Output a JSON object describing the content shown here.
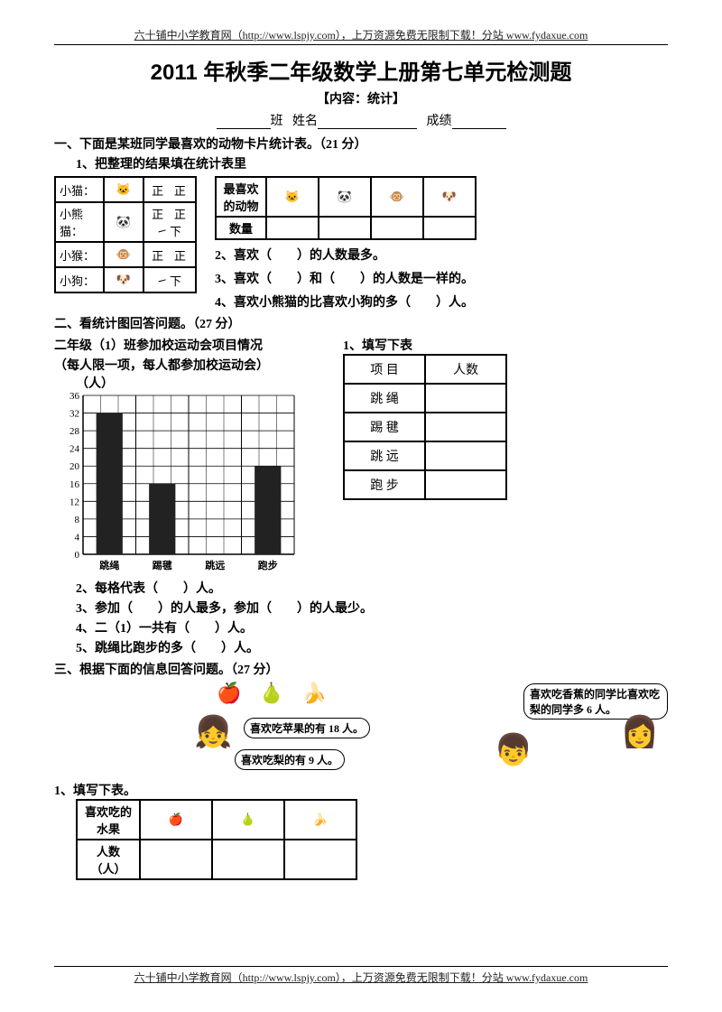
{
  "header_footer": "六十铺中小学教育网（http://www.lspjy.com），上万资源免费无限制下载！分站 www.fydaxue.com",
  "title": "2011 年秋季二年级数学上册第七单元检测题",
  "subtitle": "【内容：统计】",
  "blanks": {
    "class_label": "班",
    "name_label": "姓名",
    "score_label": "成绩"
  },
  "q1": {
    "heading": "一、下面是某班同学最喜欢的动物卡片统计表。（21 分）",
    "sub1": "1、把整理的结果填在统计表里",
    "tally_rows": [
      {
        "name": "小猫：",
        "icon": "🐱",
        "tally": "正 正"
      },
      {
        "name": "小熊猫：",
        "icon": "🐼",
        "tally": "正 正 ㇀下"
      },
      {
        "name": "小猴：",
        "icon": "🐵",
        "tally": "正 正"
      },
      {
        "name": "小狗：",
        "icon": "🐶",
        "tally": "㇀下"
      }
    ],
    "result_header": {
      "label": "最喜欢\n的动物",
      "count": "数量"
    },
    "result_icons": [
      "🐱",
      "🐼",
      "🐵",
      "🐶"
    ],
    "q2": "2、喜欢（　　）的人数最多。",
    "q3": "3、喜欢（　　）和（　　）的人数是一样的。",
    "q4": "4、喜欢小熊猫的比喜欢小狗的多（　　）人。"
  },
  "q2s": {
    "heading": "二、看统计图回答问题。（27 分）",
    "desc1": "二年级（1）班参加校运动会项目情况",
    "desc2": "（每人限一项，每人都参加校运动会）",
    "chart": {
      "y_label": "（人）",
      "y_max": 36,
      "y_step": 4,
      "categories": [
        "跳绳",
        "踢毽",
        "跳远",
        "跑步"
      ],
      "values": [
        32,
        16,
        0,
        20
      ],
      "bar_fill": "#222222",
      "grid_color": "#000000",
      "empty_bar_index": 2
    },
    "fill_title": "1、填写下表",
    "table_header": {
      "item": "项 目",
      "count": "人数"
    },
    "table_rows": [
      "跳 绳",
      "踢 毽",
      "跳 远",
      "跑 步"
    ],
    "subq": [
      "2、每格代表（　　）人。",
      "3、参加（　　）的人最多，参加（　　）的人最少。",
      "4、二（1）一共有（　　）人。",
      "5、跳绳比跑步的多（　　）人。"
    ]
  },
  "q3s": {
    "heading": "三、根据下面的信息回答问题。（27 分）",
    "fruits": [
      "🍎",
      "🍐",
      "🍌"
    ],
    "bubble1": "喜欢吃香蕉的同学比喜欢吃梨的同学多 6 人。",
    "bubble2": "喜欢吃苹果的有 18 人。",
    "bubble3": "喜欢吃梨的有 9 人。",
    "sub1": "1、填写下表。",
    "table_header": {
      "label": "喜欢吃的\n水果",
      "count": "人数（人）"
    },
    "table_icons": [
      "🍎",
      "🍐",
      "🍌"
    ]
  }
}
